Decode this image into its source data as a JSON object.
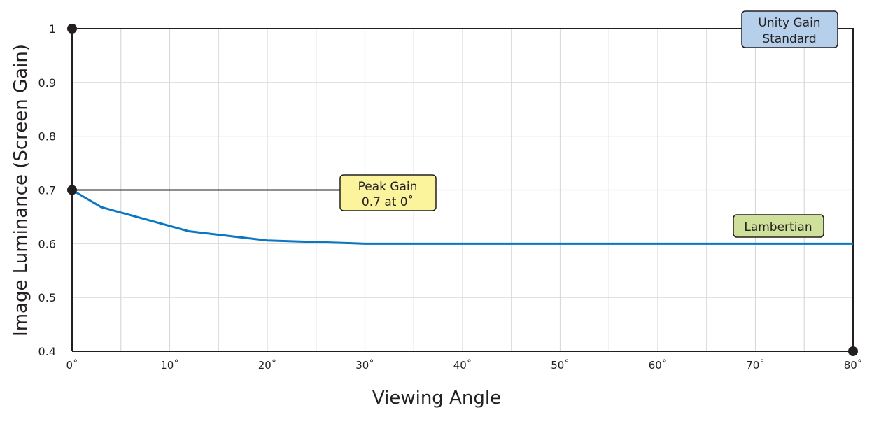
{
  "chart_data": {
    "type": "line",
    "title": "",
    "xlabel": "Viewing Angle",
    "ylabel": "Image Luminance (Screen Gain)",
    "xlim": [
      0,
      80
    ],
    "ylim": [
      0.4,
      1.0
    ],
    "grid": true,
    "x_ticks": [
      0,
      10,
      20,
      30,
      40,
      50,
      60,
      70,
      80
    ],
    "x_tick_labels": [
      "0˚",
      "10˚",
      "20˚",
      "30˚",
      "40˚",
      "50˚",
      "60˚",
      "70˚",
      "80˚"
    ],
    "y_ticks": [
      0.4,
      0.5,
      0.6,
      0.7,
      0.8,
      0.9,
      1.0
    ],
    "y_tick_labels": [
      "0.4",
      "0.5",
      "0.6",
      "0.7",
      "0.8",
      "0.9",
      "1"
    ],
    "series": [
      {
        "name": "Lambertian",
        "color": "#0b76c2",
        "x": [
          0,
          3,
          12,
          20,
          30,
          50,
          80
        ],
        "y": [
          0.7,
          0.668,
          0.623,
          0.606,
          0.6,
          0.6,
          0.6
        ]
      }
    ],
    "reference_lines": [
      {
        "name": "Unity Gain Standard",
        "y": 1.0,
        "color": "#b6d0ec"
      },
      {
        "name": "Peak Gain",
        "y": 0.7,
        "color": "#fbf49c"
      }
    ],
    "annotations": {
      "unity": [
        "Unity Gain",
        "Standard"
      ],
      "peak": [
        "Peak Gain",
        "0.7 at 0˚"
      ],
      "lambertian": "Lambertian",
      "lambertian_color": "#cfe09a"
    }
  }
}
